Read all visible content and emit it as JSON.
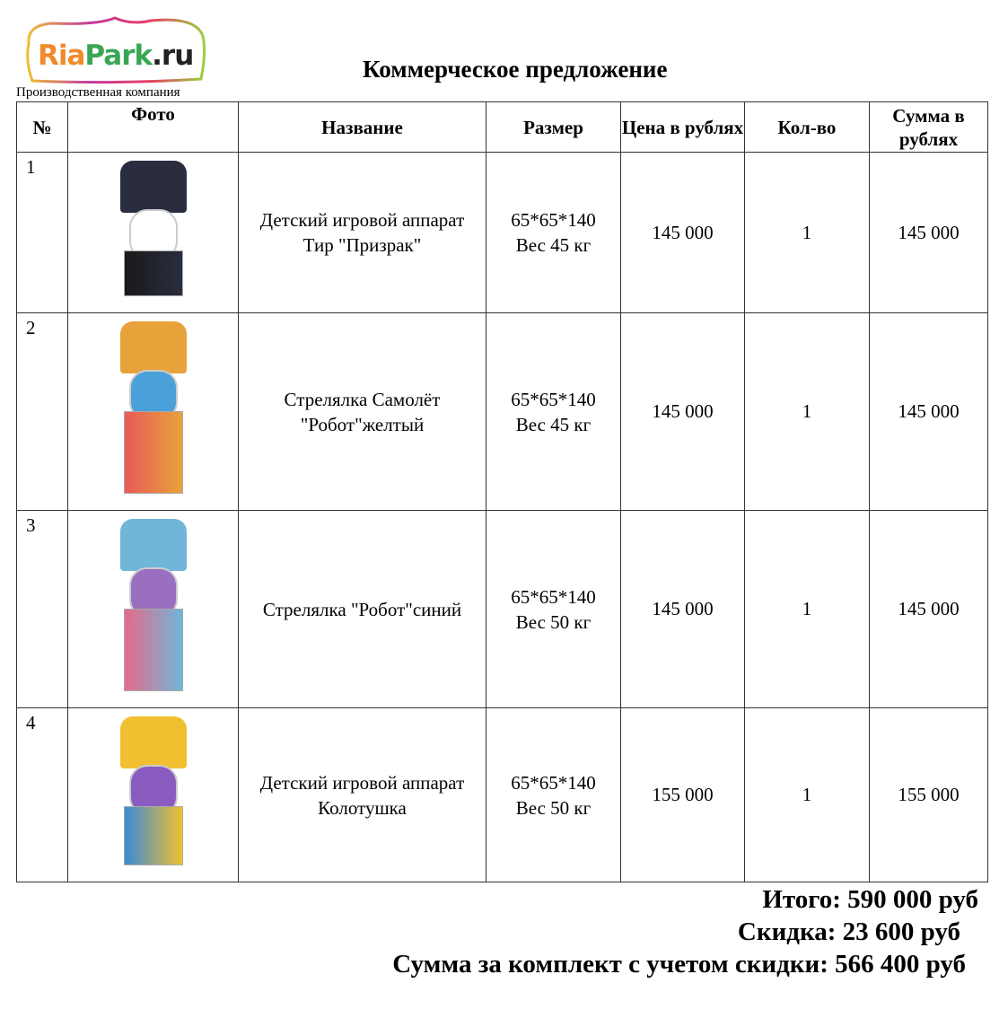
{
  "header": {
    "logo_text": "RiaPark.ru",
    "company": "Производственная компания",
    "title": "Коммерческое предложение"
  },
  "table": {
    "columns": [
      "№",
      "Фото",
      "Название",
      "Размер",
      "Цена в рублях",
      "Кол-во",
      "Сумма в рублях"
    ],
    "rows": [
      {
        "num": "1",
        "photo": "ghost-shooter-machine",
        "name": "Детский игровой аппарат Тир \"Призрак\"",
        "size": "65*65*140",
        "weight": "Вес 45 кг",
        "price": "145 000",
        "qty": "1",
        "sum": "145 000",
        "colors": [
          "#2a2d3e",
          "#ffffff",
          "#1a1a1a"
        ]
      },
      {
        "num": "2",
        "photo": "plane-robot-yellow-machine",
        "name": "Стрелялка Самолёт \"Робот\"желтый",
        "size": "65*65*140",
        "weight": "Вес 45 кг",
        "price": "145 000",
        "qty": "1",
        "sum": "145 000",
        "colors": [
          "#e8a23a",
          "#4aa0d8",
          "#e85a5a"
        ]
      },
      {
        "num": "3",
        "photo": "robot-blue-machine",
        "name": "Стрелялка  \"Робот\"синий",
        "size": "65*65*140",
        "weight": "Вес 50 кг",
        "price": "145 000",
        "qty": "1",
        "sum": "145 000",
        "colors": [
          "#6fb6d9",
          "#9b6fc0",
          "#e86a8a"
        ]
      },
      {
        "num": "4",
        "photo": "pirate-whack-machine",
        "name": "Детский игровой аппарат Колотушка",
        "size": "65*65*140",
        "weight": "Вес 50 кг",
        "price": "155 000",
        "qty": "1",
        "sum": "155 000",
        "colors": [
          "#f0c030",
          "#8a5cc0",
          "#3a8ad8"
        ]
      }
    ]
  },
  "totals": {
    "total": "Итого: 590 000 руб",
    "discount": "Скидка: 23 600 руб",
    "final": "Сумма за комплект с учетом скидки: 566 400 руб"
  }
}
